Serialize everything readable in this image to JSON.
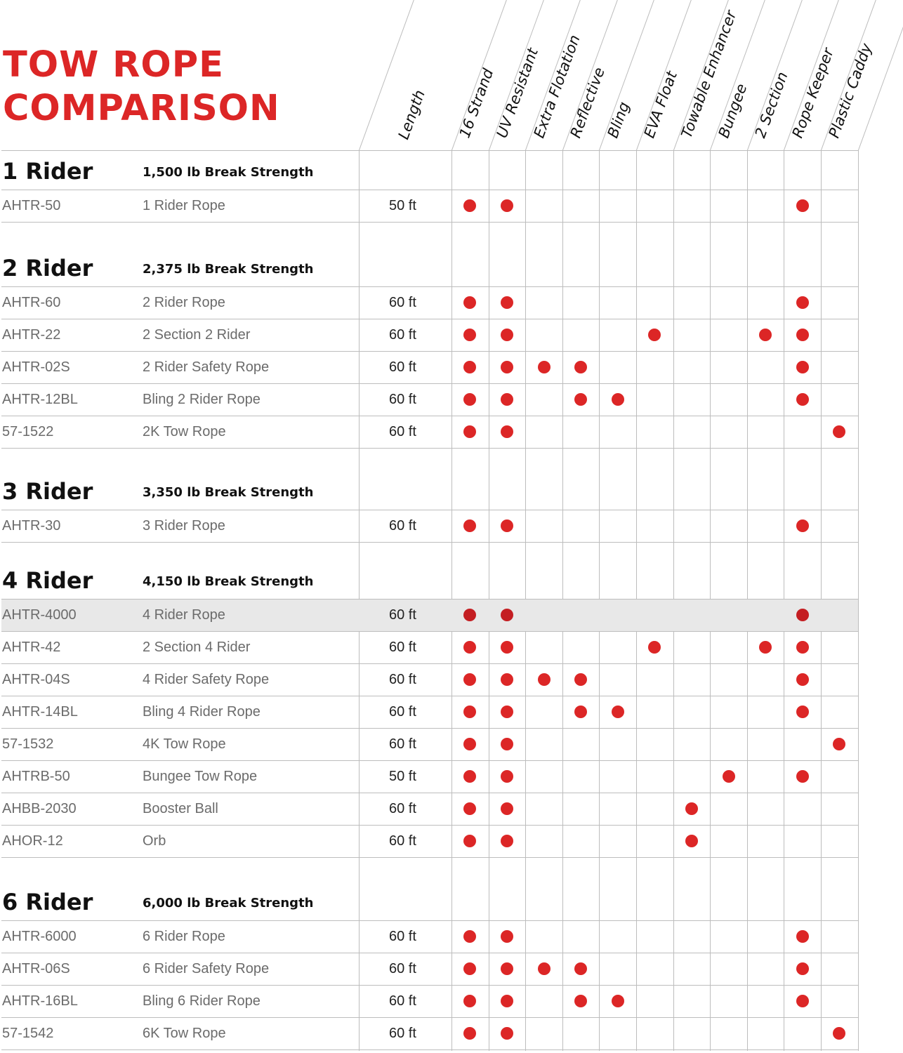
{
  "title": {
    "line1": "TOW ROPE",
    "line2": "COMPARISON"
  },
  "colors": {
    "accent": "#dc2626",
    "feature_dot": "#dc2626",
    "grid": "#bdbdbd",
    "highlight_row": "#e8e8e8"
  },
  "columns": {
    "length": "Length",
    "features": [
      "16 Strand",
      "UV Resistant",
      "Extra Flotation",
      "Reflective",
      "Bling",
      "EVA Float",
      "Towable Enhancer",
      "Bungee",
      "2 Section",
      "Rope Keeper",
      "Plastic Caddy"
    ]
  },
  "groups": [
    {
      "name": "1 Rider",
      "strength": "1,500 lb Break Strength",
      "rows": [
        {
          "sku": "AHTR-50",
          "name": "1 Rider Rope",
          "length": "50 ft",
          "features": [
            0,
            1,
            9
          ]
        }
      ]
    },
    {
      "name": "2 Rider",
      "strength": "2,375 lb Break Strength",
      "rows": [
        {
          "sku": "AHTR-60",
          "name": "2 Rider Rope",
          "length": "60 ft",
          "features": [
            0,
            1,
            9
          ]
        },
        {
          "sku": "AHTR-22",
          "name": "2 Section 2 Rider",
          "length": "60 ft",
          "features": [
            0,
            1,
            5,
            8,
            9
          ]
        },
        {
          "sku": "AHTR-02S",
          "name": "2 Rider Safety Rope",
          "length": "60 ft",
          "features": [
            0,
            1,
            2,
            3,
            9
          ]
        },
        {
          "sku": "AHTR-12BL",
          "name": "Bling 2 Rider Rope",
          "length": "60 ft",
          "features": [
            0,
            1,
            3,
            4,
            9
          ]
        },
        {
          "sku": "57-1522",
          "name": "2K Tow Rope",
          "length": "60 ft",
          "features": [
            0,
            1,
            10
          ]
        }
      ]
    },
    {
      "name": "3 Rider",
      "strength": "3,350 lb Break Strength",
      "rows": [
        {
          "sku": "AHTR-30",
          "name": "3 Rider Rope",
          "length": "60 ft",
          "features": [
            0,
            1,
            9
          ]
        }
      ]
    },
    {
      "name": "4 Rider",
      "strength": "4,150 lb Break Strength",
      "rows": [
        {
          "sku": "AHTR-4000",
          "name": "4 Rider Rope",
          "length": "60 ft",
          "features": [
            0,
            1,
            9
          ],
          "highlighted": true
        },
        {
          "sku": "AHTR-42",
          "name": "2 Section 4 Rider",
          "length": "60 ft",
          "features": [
            0,
            1,
            5,
            8,
            9
          ]
        },
        {
          "sku": "AHTR-04S",
          "name": "4 Rider Safety Rope",
          "length": "60 ft",
          "features": [
            0,
            1,
            2,
            3,
            9
          ]
        },
        {
          "sku": "AHTR-14BL",
          "name": "Bling 4 Rider Rope",
          "length": "60 ft",
          "features": [
            0,
            1,
            3,
            4,
            9
          ]
        },
        {
          "sku": "57-1532",
          "name": "4K Tow Rope",
          "length": "60 ft",
          "features": [
            0,
            1,
            10
          ]
        },
        {
          "sku": "AHTRB-50",
          "name": "Bungee Tow Rope",
          "length": "50 ft",
          "features": [
            0,
            1,
            7,
            9
          ]
        },
        {
          "sku": "AHBB-2030",
          "name": "Booster Ball",
          "length": "60 ft",
          "features": [
            0,
            1,
            6
          ]
        },
        {
          "sku": "AHOR-12",
          "name": "Orb",
          "length": "60 ft",
          "features": [
            0,
            1,
            6
          ]
        }
      ]
    },
    {
      "name": "6 Rider",
      "strength": "6,000 lb Break Strength",
      "rows": [
        {
          "sku": "AHTR-6000",
          "name": "6 Rider Rope",
          "length": "60 ft",
          "features": [
            0,
            1,
            9
          ]
        },
        {
          "sku": "AHTR-06S",
          "name": "6 Rider Safety Rope",
          "length": "60 ft",
          "features": [
            0,
            1,
            2,
            3,
            9
          ]
        },
        {
          "sku": "AHTR-16BL",
          "name": "Bling 6 Rider Rope",
          "length": "60 ft",
          "features": [
            0,
            1,
            3,
            4,
            9
          ]
        },
        {
          "sku": "57-1542",
          "name": "6K Tow Rope",
          "length": "60 ft",
          "features": [
            0,
            1,
            10
          ]
        }
      ]
    }
  ]
}
